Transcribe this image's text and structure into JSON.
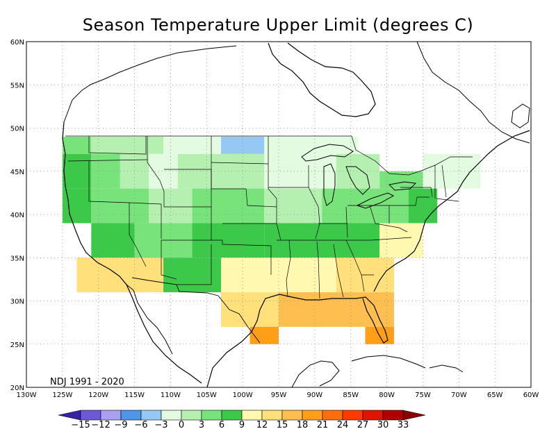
{
  "title": "Season Temperature Upper Limit (degrees C)",
  "season_label": "NDJ 1991 - 2020",
  "map": {
    "lon_range": [
      -130,
      -60
    ],
    "lat_range": [
      20,
      60
    ],
    "longitude_ticks": [
      "130W",
      "125W",
      "120W",
      "115W",
      "110W",
      "105W",
      "100W",
      "95W",
      "90W",
      "85W",
      "80W",
      "75W",
      "70W",
      "65W",
      "60W"
    ],
    "latitude_ticks": [
      "20N",
      "25N",
      "30N",
      "35N",
      "40N",
      "45N",
      "50N",
      "55N",
      "60N"
    ],
    "grid": "dotted"
  },
  "colorbar": {
    "labels": [
      "-15",
      "-12",
      "-9",
      "-6",
      "-3",
      "0",
      "3",
      "6",
      "9",
      "12",
      "15",
      "18",
      "21",
      "24",
      "27",
      "30",
      "33"
    ],
    "colors": [
      "#3a1fa8",
      "#6e58d8",
      "#a8a0f0",
      "#4f95e8",
      "#96c8f5",
      "#e3fbe0",
      "#b6f0b0",
      "#78e37a",
      "#3cc94a",
      "#fff8b0",
      "#ffe07a",
      "#ffbf50",
      "#ff9f18",
      "#ff6e08",
      "#ff3a00",
      "#e01400",
      "#b00000",
      "#8a0000"
    ]
  },
  "chart_data": {
    "type": "heatmap",
    "title": "Season Temperature Upper Limit (degrees C)",
    "season": "NDJ 1991 - 2020",
    "units": "degrees C",
    "grid_step_deg": 2,
    "cells": [
      {
        "lon_range": [
          -125,
          -121
        ],
        "lat_range": [
          47,
          49
        ],
        "value": 4
      },
      {
        "lon_range": [
          -121,
          -111
        ],
        "lat_range": [
          47,
          49
        ],
        "value": 1
      },
      {
        "lon_range": [
          -111,
          -103
        ],
        "lat_range": [
          47,
          49
        ],
        "value": -2
      },
      {
        "lon_range": [
          -103,
          -97
        ],
        "lat_range": [
          47,
          49
        ],
        "value": -4
      },
      {
        "lon_range": [
          -97,
          -89
        ],
        "lat_range": [
          47,
          49
        ],
        "value": -2
      },
      {
        "lon_range": [
          -89,
          -84
        ],
        "lat_range": [
          47,
          49
        ],
        "value": -2
      },
      {
        "lon_range": [
          -125,
          -121
        ],
        "lat_range": [
          43,
          47
        ],
        "value": 6
      },
      {
        "lon_range": [
          -121,
          -117
        ],
        "lat_range": [
          43,
          47
        ],
        "value": 4
      },
      {
        "lon_range": [
          -117,
          -113
        ],
        "lat_range": [
          43,
          47
        ],
        "value": 1
      },
      {
        "lon_range": [
          -113,
          -109
        ],
        "lat_range": [
          43,
          47
        ],
        "value": -1
      },
      {
        "lon_range": [
          -109,
          -103
        ],
        "lat_range": [
          43,
          47
        ],
        "value": 1
      },
      {
        "lon_range": [
          -103,
          -97
        ],
        "lat_range": [
          43,
          47
        ],
        "value": 1
      },
      {
        "lon_range": [
          -97,
          -87
        ],
        "lat_range": [
          43,
          47
        ],
        "value": -2
      },
      {
        "lon_range": [
          -87,
          -81
        ],
        "lat_range": [
          43,
          47
        ],
        "value": 1
      },
      {
        "lon_range": [
          -81,
          -75
        ],
        "lat_range": [
          43,
          45
        ],
        "value": 3
      },
      {
        "lon_range": [
          -75,
          -71
        ],
        "lat_range": [
          43,
          47
        ],
        "value": -1
      },
      {
        "lon_range": [
          -71,
          -67
        ],
        "lat_range": [
          43,
          47
        ],
        "value": -2
      },
      {
        "lon_range": [
          -125,
          -121
        ],
        "lat_range": [
          39,
          43
        ],
        "value": 7
      },
      {
        "lon_range": [
          -121,
          -113
        ],
        "lat_range": [
          39,
          43
        ],
        "value": 4
      },
      {
        "lon_range": [
          -113,
          -107
        ],
        "lat_range": [
          39,
          43
        ],
        "value": 1
      },
      {
        "lon_range": [
          -107,
          -97
        ],
        "lat_range": [
          39,
          43
        ],
        "value": 3
      },
      {
        "lon_range": [
          -97,
          -89
        ],
        "lat_range": [
          39,
          43
        ],
        "value": 2
      },
      {
        "lon_range": [
          -89,
          -83
        ],
        "lat_range": [
          39,
          43
        ],
        "value": 4
      },
      {
        "lon_range": [
          -83,
          -77
        ],
        "lat_range": [
          39,
          43
        ],
        "value": 5
      },
      {
        "lon_range": [
          -77,
          -73
        ],
        "lat_range": [
          39,
          43
        ],
        "value": 7
      },
      {
        "lon_range": [
          -121,
          -115
        ],
        "lat_range": [
          35,
          39
        ],
        "value": 8
      },
      {
        "lon_range": [
          -115,
          -107
        ],
        "lat_range": [
          35,
          39
        ],
        "value": 4
      },
      {
        "lon_range": [
          -107,
          -97
        ],
        "lat_range": [
          35,
          39
        ],
        "value": 6
      },
      {
        "lon_range": [
          -97,
          -87
        ],
        "lat_range": [
          35,
          39
        ],
        "value": 8
      },
      {
        "lon_range": [
          -87,
          -81
        ],
        "lat_range": [
          35,
          39
        ],
        "value": 8
      },
      {
        "lon_range": [
          -81,
          -75
        ],
        "lat_range": [
          35,
          39
        ],
        "value": 9
      },
      {
        "lon_range": [
          -123,
          -117
        ],
        "lat_range": [
          31,
          35
        ],
        "value": 12
      },
      {
        "lon_range": [
          -117,
          -111
        ],
        "lat_range": [
          31,
          35
        ],
        "value": 14
      },
      {
        "lon_range": [
          -111,
          -103
        ],
        "lat_range": [
          31,
          35
        ],
        "value": 7
      },
      {
        "lon_range": [
          -103,
          -95
        ],
        "lat_range": [
          31,
          35
        ],
        "value": 9
      },
      {
        "lon_range": [
          -95,
          -87
        ],
        "lat_range": [
          31,
          35
        ],
        "value": 11
      },
      {
        "lon_range": [
          -87,
          -79
        ],
        "lat_range": [
          31,
          35
        ],
        "value": 12
      },
      {
        "lon_range": [
          -103,
          -95
        ],
        "lat_range": [
          27,
          31
        ],
        "value": 14
      },
      {
        "lon_range": [
          -95,
          -83
        ],
        "lat_range": [
          27,
          31
        ],
        "value": 15
      },
      {
        "lon_range": [
          -83,
          -79
        ],
        "lat_range": [
          27,
          31
        ],
        "value": 16
      },
      {
        "lon_range": [
          -99,
          -95
        ],
        "lat_range": [
          25,
          27
        ],
        "value": 18
      },
      {
        "lon_range": [
          -83,
          -79
        ],
        "lat_range": [
          25,
          27
        ],
        "value": 20
      }
    ]
  }
}
